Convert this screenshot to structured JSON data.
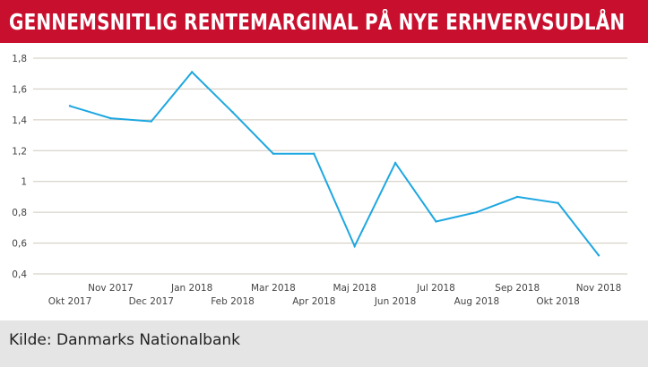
{
  "header": {
    "title": "GENNEMSNITLIG RENTEMARGINAL PÅ NYE ERHVERVSUDLÅN"
  },
  "footer": {
    "source": "Kilde: Danmarks Nationalbank"
  },
  "colors": {
    "title_bar": "#c8102e",
    "line": "#1ea7e1",
    "grid": "#cfc9bd",
    "footer_bg": "#e5e5e5"
  },
  "chart_data": {
    "type": "line",
    "title": "GENNEMSNITLIG RENTEMARGINAL PÅ NYE ERHVERVSUDLÅN",
    "xlabel": "",
    "ylabel": "",
    "categories": [
      "Okt 2017",
      "Nov 2017",
      "Dec 2017",
      "Jan 2018",
      "Feb 2018",
      "Mar 2018",
      "Apr 2018",
      "Maj 2018",
      "Jun 2018",
      "Jul 2018",
      "Aug 2018",
      "Sep 2018",
      "Okt 2018",
      "Nov 2018"
    ],
    "series": [
      {
        "values": [
          1.49,
          1.41,
          1.39,
          1.71,
          1.45,
          1.18,
          1.18,
          0.58,
          1.12,
          0.74,
          0.8,
          0.9,
          0.86,
          0.52
        ]
      }
    ],
    "ylim": [
      0.4,
      1.8
    ],
    "yticks": [
      0.4,
      0.6,
      0.8,
      1,
      1.2,
      1.4,
      1.6,
      1.8
    ],
    "ytick_labels": [
      "0,4",
      "0,6",
      "0,8",
      "1",
      "1,2",
      "1,4",
      "1,6",
      "1,8"
    ],
    "grid": true,
    "legend": "none"
  }
}
